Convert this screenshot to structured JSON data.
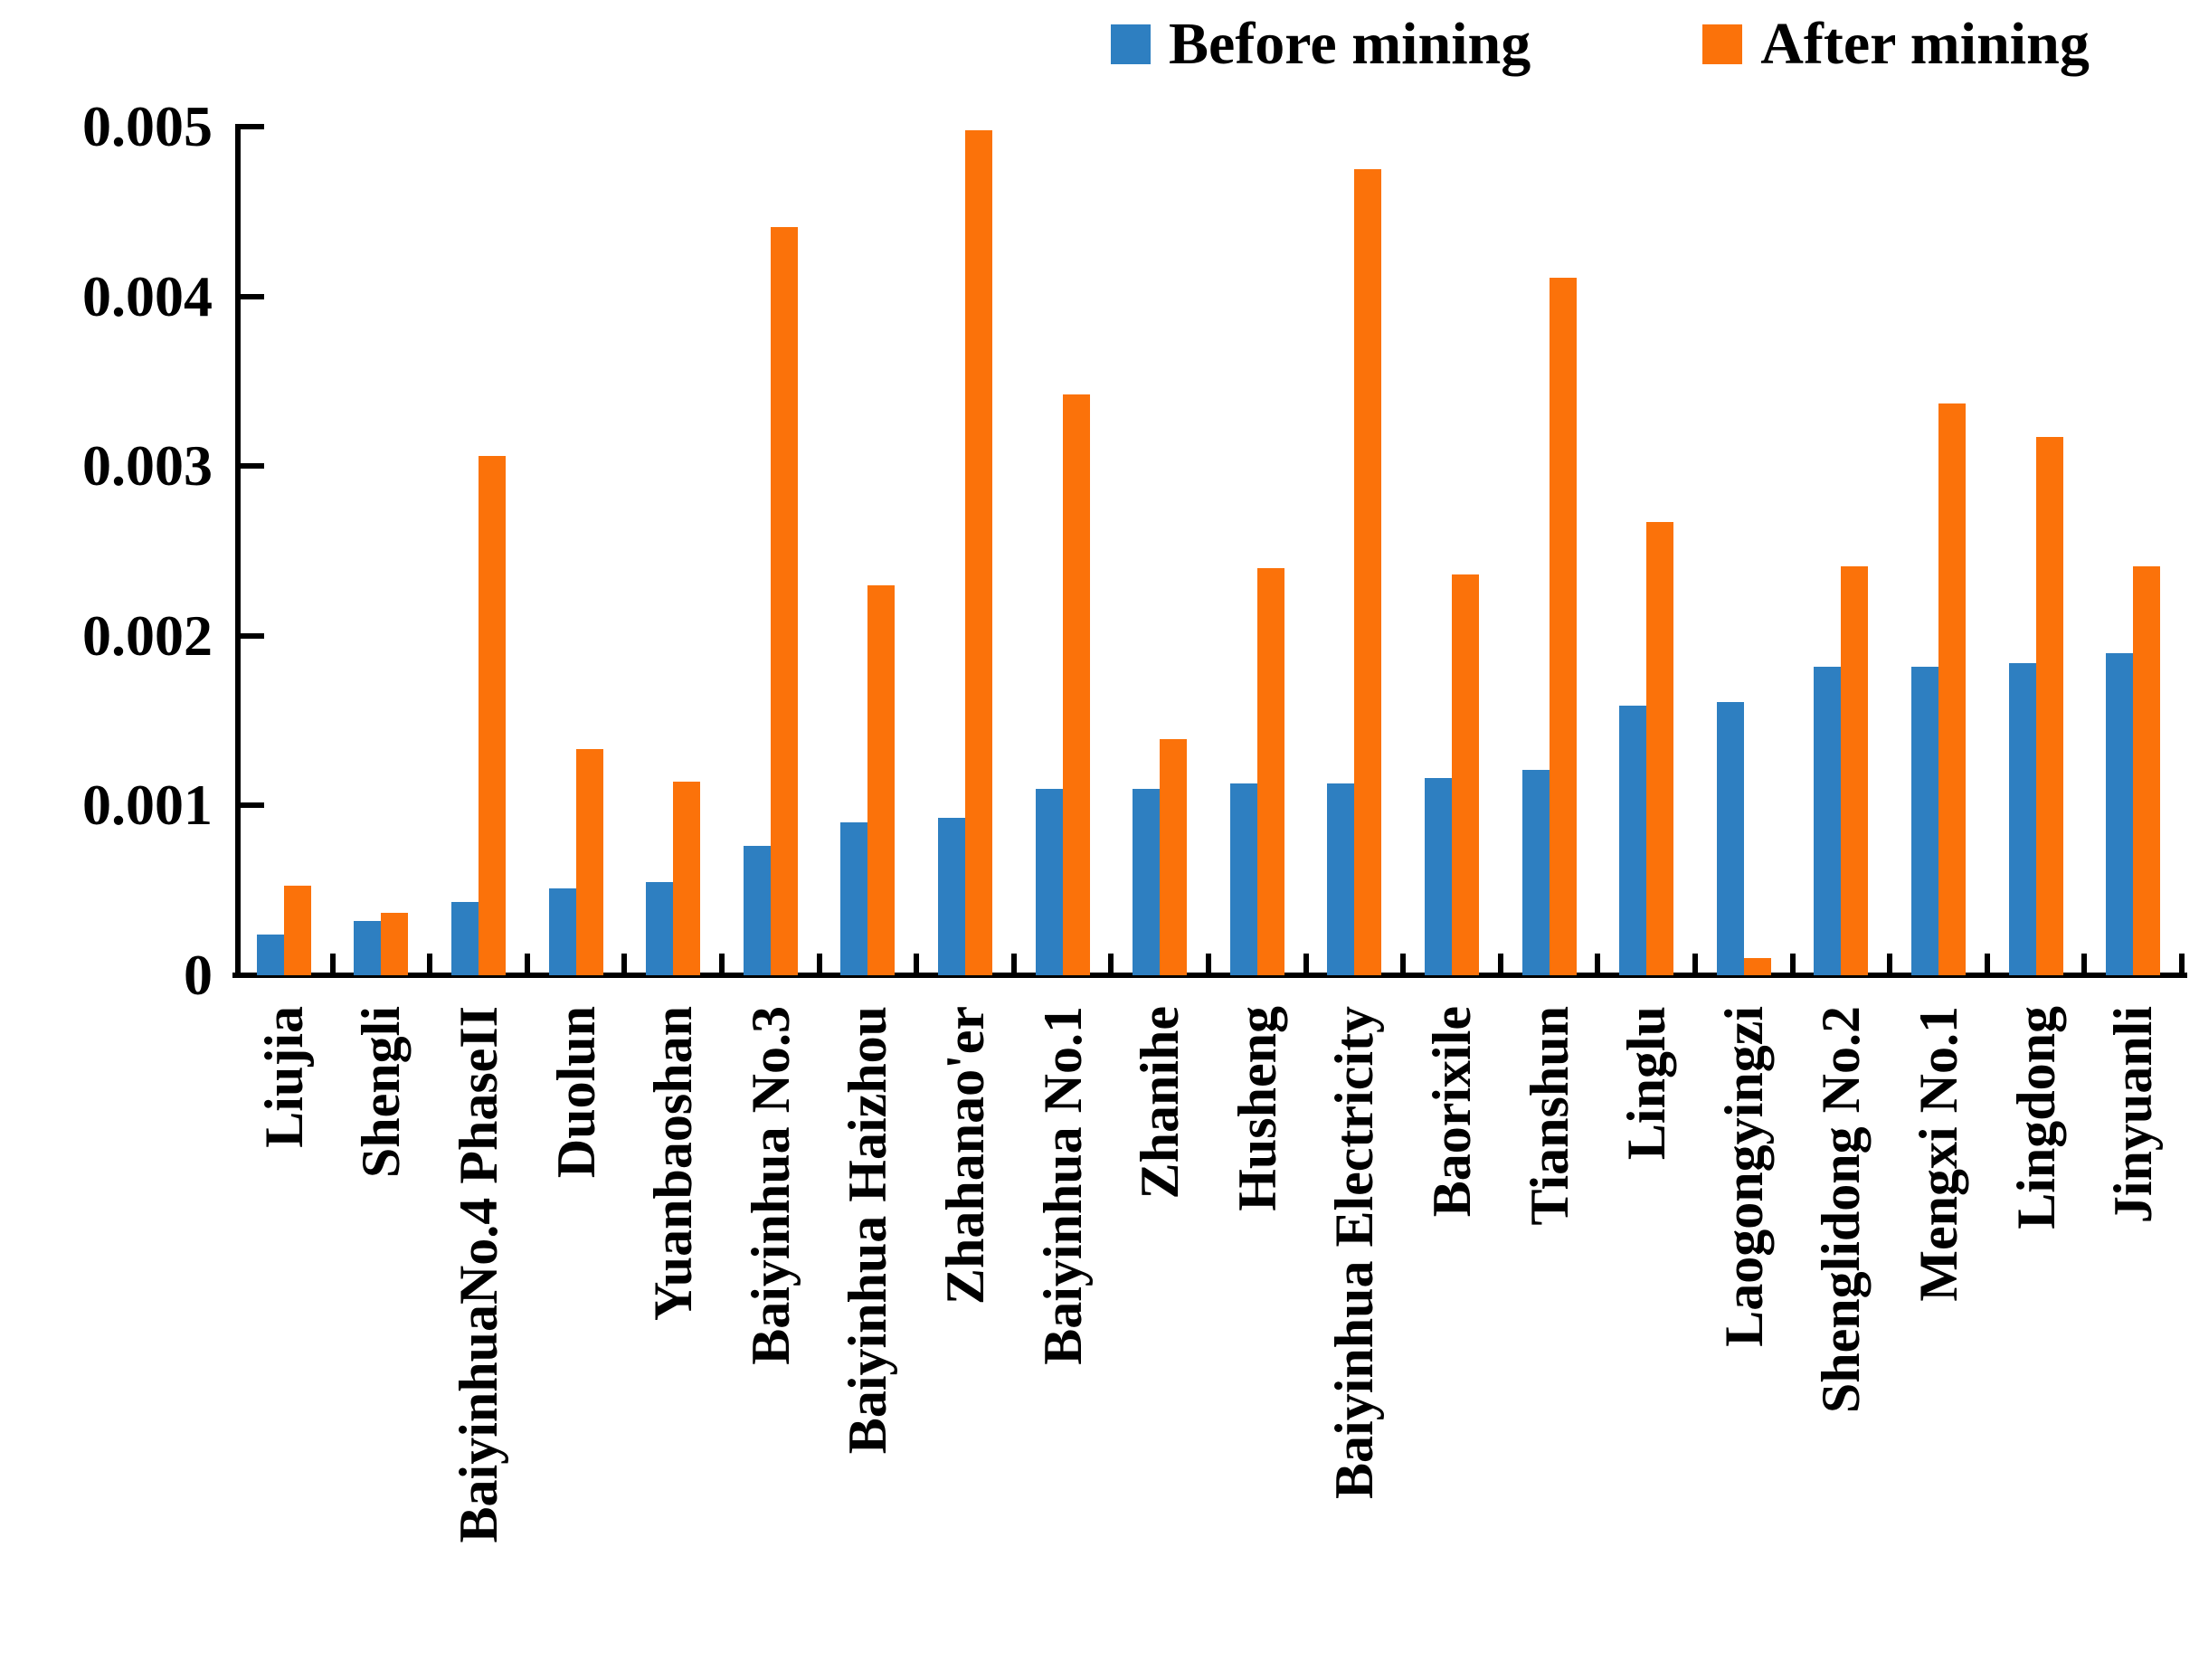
{
  "legend": {
    "before_label": "Before mining",
    "after_label": "After mining"
  },
  "colors": {
    "before": "#2E7FC1",
    "after": "#FB720A",
    "axis": "#000000",
    "background": "#FFFFFF"
  },
  "y_axis": {
    "tick_labels": [
      "0",
      "0.001",
      "0.002",
      "0.003",
      "0.004",
      "0.005"
    ],
    "min": 0,
    "max": 0.005
  },
  "chart_data": {
    "type": "bar",
    "title": "",
    "xlabel": "",
    "ylabel": "",
    "ylim": [
      0,
      0.005
    ],
    "grid": false,
    "legend_position": "top",
    "categories": [
      "Liujia",
      "Shengli",
      "BaiyinhuaNo.4 PhaseII",
      "Duolun",
      "Yuanbaoshan",
      "Baiyinhua No.3",
      "Baiyinhua Haizhou",
      "Zhahanao'er",
      "Baiyinhua No.1",
      "Zhanihe",
      "Husheng",
      "Baiyinhua Electricity",
      "Baorixile",
      "Tianshun",
      "Linglu",
      "Laogongyingzi",
      "Shenglidong No.2",
      "Mengxi No.1",
      "Lingdong",
      "Jinyuanli"
    ],
    "series": [
      {
        "name": "Before mining",
        "values": [
          0.00024,
          0.00032,
          0.00043,
          0.00051,
          0.00055,
          0.00076,
          0.0009,
          0.00093,
          0.0011,
          0.0011,
          0.00113,
          0.00113,
          0.00116,
          0.00121,
          0.00159,
          0.00161,
          0.00182,
          0.00182,
          0.00184,
          0.0019
        ]
      },
      {
        "name": "After mining",
        "values": [
          0.00053,
          0.00037,
          0.00306,
          0.00133,
          0.00114,
          0.00441,
          0.0023,
          0.00498,
          0.00342,
          0.00139,
          0.0024,
          0.00475,
          0.00236,
          0.00411,
          0.00267,
          0.0001,
          0.00241,
          0.00337,
          0.00317,
          0.00241
        ]
      }
    ]
  }
}
